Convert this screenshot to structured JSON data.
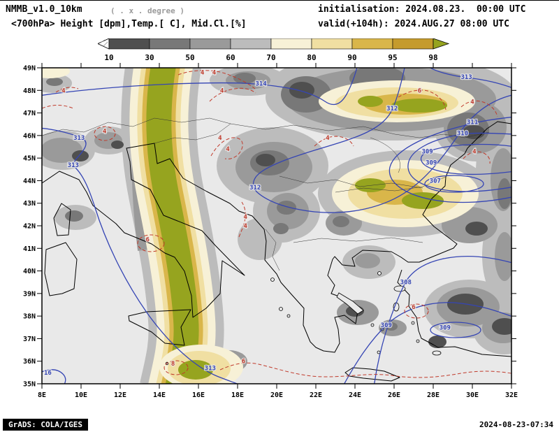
{
  "header": {
    "model": "NMMB_v1.0_10km",
    "grid_note": "( . x . degree )",
    "init": "initialisation: 2024.08.23.  00:00 UTC",
    "field": "<700hPa> Height [dpm],Temp.[ C], Mid.Cl.[%]",
    "valid": "valid(+104h): 2024.AUG.27 08:00 UTC"
  },
  "colorbar": {
    "ticks": [
      "10",
      "30",
      "50",
      "60",
      "70",
      "80",
      "90",
      "95",
      "98"
    ],
    "segment_colors": [
      "#4f4f4f",
      "#787878",
      "#9a9a9a",
      "#bcbcbc",
      "#f7f1d7",
      "#f0dfa2",
      "#d9b64a",
      "#c59b2d"
    ],
    "under_arrow_color": "#ffffff",
    "over_arrow_color": "#96a41f"
  },
  "map": {
    "lat_labels": [
      "49N",
      "48N",
      "47N",
      "46N",
      "45N",
      "44N",
      "43N",
      "42N",
      "41N",
      "40N",
      "39N",
      "38N",
      "37N",
      "36N",
      "35N"
    ],
    "lon_labels": [
      "8E",
      "10E",
      "12E",
      "14E",
      "16E",
      "18E",
      "20E",
      "22E",
      "24E",
      "26E",
      "28E",
      "30E",
      "32E"
    ],
    "height_color": "#3545b4",
    "temp_color": "#c03a2b",
    "height_labels": [
      {
        "v": "314",
        "lon": 19.2,
        "lat": 48.3
      },
      {
        "v": "313",
        "lon": 29.7,
        "lat": 48.6
      },
      {
        "v": "313",
        "lon": 9.9,
        "lat": 45.9
      },
      {
        "v": "313",
        "lon": 9.6,
        "lat": 44.7
      },
      {
        "v": "312",
        "lon": 25.9,
        "lat": 47.2
      },
      {
        "v": "312",
        "lon": 18.9,
        "lat": 43.7
      },
      {
        "v": "311",
        "lon": 30.0,
        "lat": 46.6
      },
      {
        "v": "310",
        "lon": 29.5,
        "lat": 46.1
      },
      {
        "v": "309",
        "lon": 27.7,
        "lat": 45.3
      },
      {
        "v": "309",
        "lon": 27.9,
        "lat": 44.8
      },
      {
        "v": "307",
        "lon": 28.1,
        "lat": 44.0
      },
      {
        "v": "308",
        "lon": 26.6,
        "lat": 39.5
      },
      {
        "v": "309",
        "lon": 25.6,
        "lat": 37.6
      },
      {
        "v": "309",
        "lon": 28.6,
        "lat": 37.5
      },
      {
        "v": "313",
        "lon": 16.6,
        "lat": 35.7
      },
      {
        "v": "16",
        "lon": 8.3,
        "lat": 35.5
      }
    ],
    "temp_labels": [
      {
        "v": "4",
        "lon": 16.2,
        "lat": 48.8
      },
      {
        "v": "4",
        "lon": 16.8,
        "lat": 48.8
      },
      {
        "v": "4",
        "lon": 17.2,
        "lat": 48.0
      },
      {
        "v": "4",
        "lon": 9.1,
        "lat": 48.0
      },
      {
        "v": "6",
        "lon": 27.3,
        "lat": 48.0
      },
      {
        "v": "4",
        "lon": 30.0,
        "lat": 47.5
      },
      {
        "v": "4",
        "lon": 11.2,
        "lat": 46.2
      },
      {
        "v": "4",
        "lon": 17.1,
        "lat": 45.9
      },
      {
        "v": "4",
        "lon": 17.5,
        "lat": 45.4
      },
      {
        "v": "4",
        "lon": 22.6,
        "lat": 45.9
      },
      {
        "v": "4",
        "lon": 30.1,
        "lat": 45.3
      },
      {
        "v": "4",
        "lon": 18.4,
        "lat": 42.4
      },
      {
        "v": "4",
        "lon": 18.4,
        "lat": 42.0
      },
      {
        "v": "6",
        "lon": 13.4,
        "lat": 41.4
      },
      {
        "v": "6",
        "lon": 18.3,
        "lat": 36.0
      },
      {
        "v": "8",
        "lon": 14.7,
        "lat": 35.9
      },
      {
        "v": "6",
        "lon": 27.0,
        "lat": 38.4
      }
    ]
  },
  "footer": {
    "left": "GrADS: COLA/IGES",
    "right": "2024-08-23-07:34"
  }
}
